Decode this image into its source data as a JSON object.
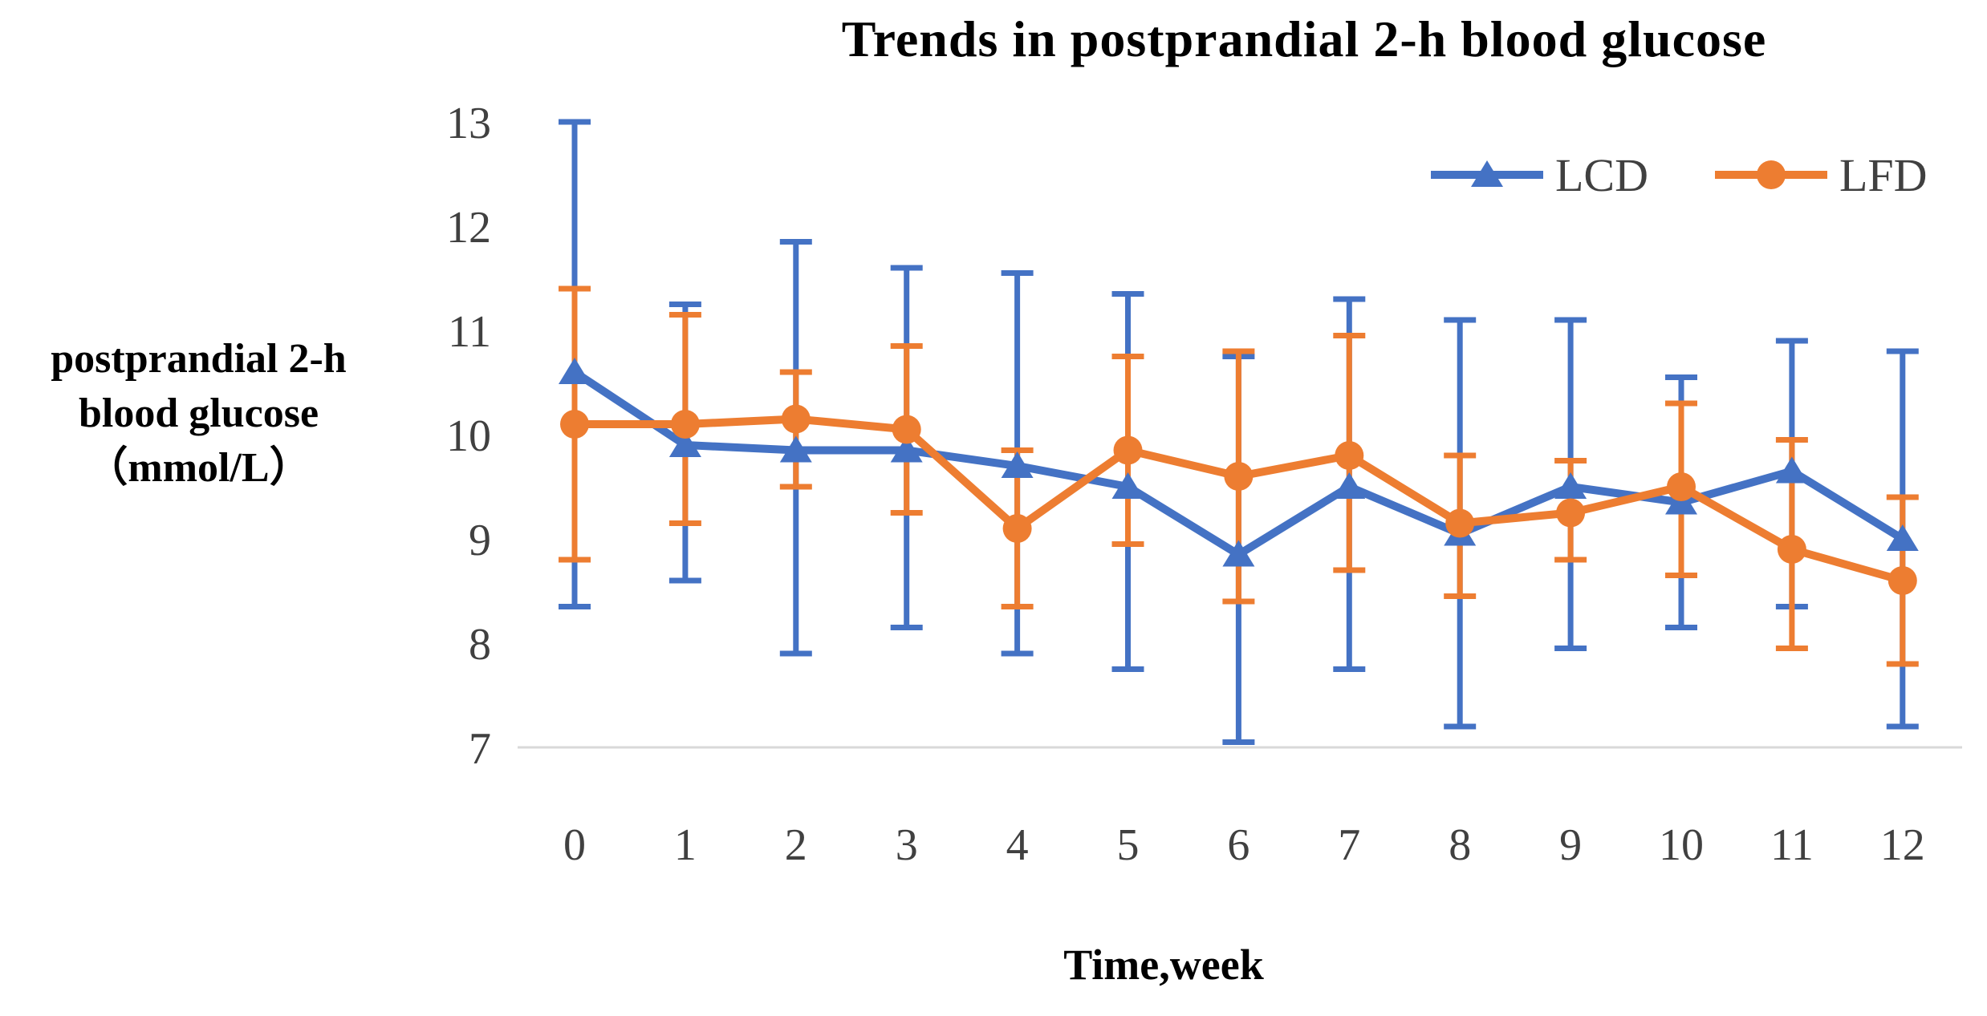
{
  "chart_data": {
    "type": "line",
    "title": "Trends in postprandial 2-h blood glucose",
    "xlabel": "Time,week",
    "ylabel_lines": [
      "postprandial 2-h",
      "blood glucose",
      "（mmol/L）"
    ],
    "x": [
      0,
      1,
      2,
      3,
      4,
      5,
      6,
      7,
      8,
      9,
      10,
      11,
      12
    ],
    "ylim": [
      7,
      13
    ],
    "yticks": [
      13,
      12,
      11,
      10,
      9,
      8,
      7
    ],
    "grid": false,
    "legend_position": "top-right",
    "axis_line_color": "#d9d9d9",
    "tick_label_color": "#404040",
    "series": [
      {
        "name": "LCD",
        "color": "#4472C4",
        "marker": "triangle",
        "values": [
          10.6,
          9.9,
          9.85,
          9.85,
          9.7,
          9.5,
          8.85,
          9.5,
          9.05,
          9.5,
          9.35,
          9.65,
          9.0
        ],
        "err_upper": [
          13.0,
          11.25,
          11.85,
          11.6,
          11.55,
          11.35,
          10.75,
          11.3,
          11.1,
          11.1,
          10.55,
          10.9,
          10.8
        ],
        "err_lower": [
          8.35,
          8.6,
          7.9,
          8.15,
          7.9,
          7.75,
          7.05,
          7.75,
          7.2,
          7.95,
          8.15,
          8.35,
          7.2
        ]
      },
      {
        "name": "LFD",
        "color": "#ED7D31",
        "marker": "circle",
        "values": [
          10.1,
          10.1,
          10.15,
          10.05,
          9.1,
          9.85,
          9.6,
          9.8,
          9.15,
          9.25,
          9.5,
          8.9,
          8.6
        ],
        "err_upper": [
          11.4,
          11.15,
          10.6,
          10.85,
          9.85,
          10.75,
          10.8,
          10.95,
          9.8,
          9.75,
          10.3,
          9.95,
          9.4
        ],
        "err_lower": [
          8.8,
          9.15,
          9.5,
          9.25,
          8.35,
          8.95,
          8.4,
          8.7,
          8.45,
          8.8,
          8.65,
          7.95,
          7.8
        ]
      }
    ]
  }
}
